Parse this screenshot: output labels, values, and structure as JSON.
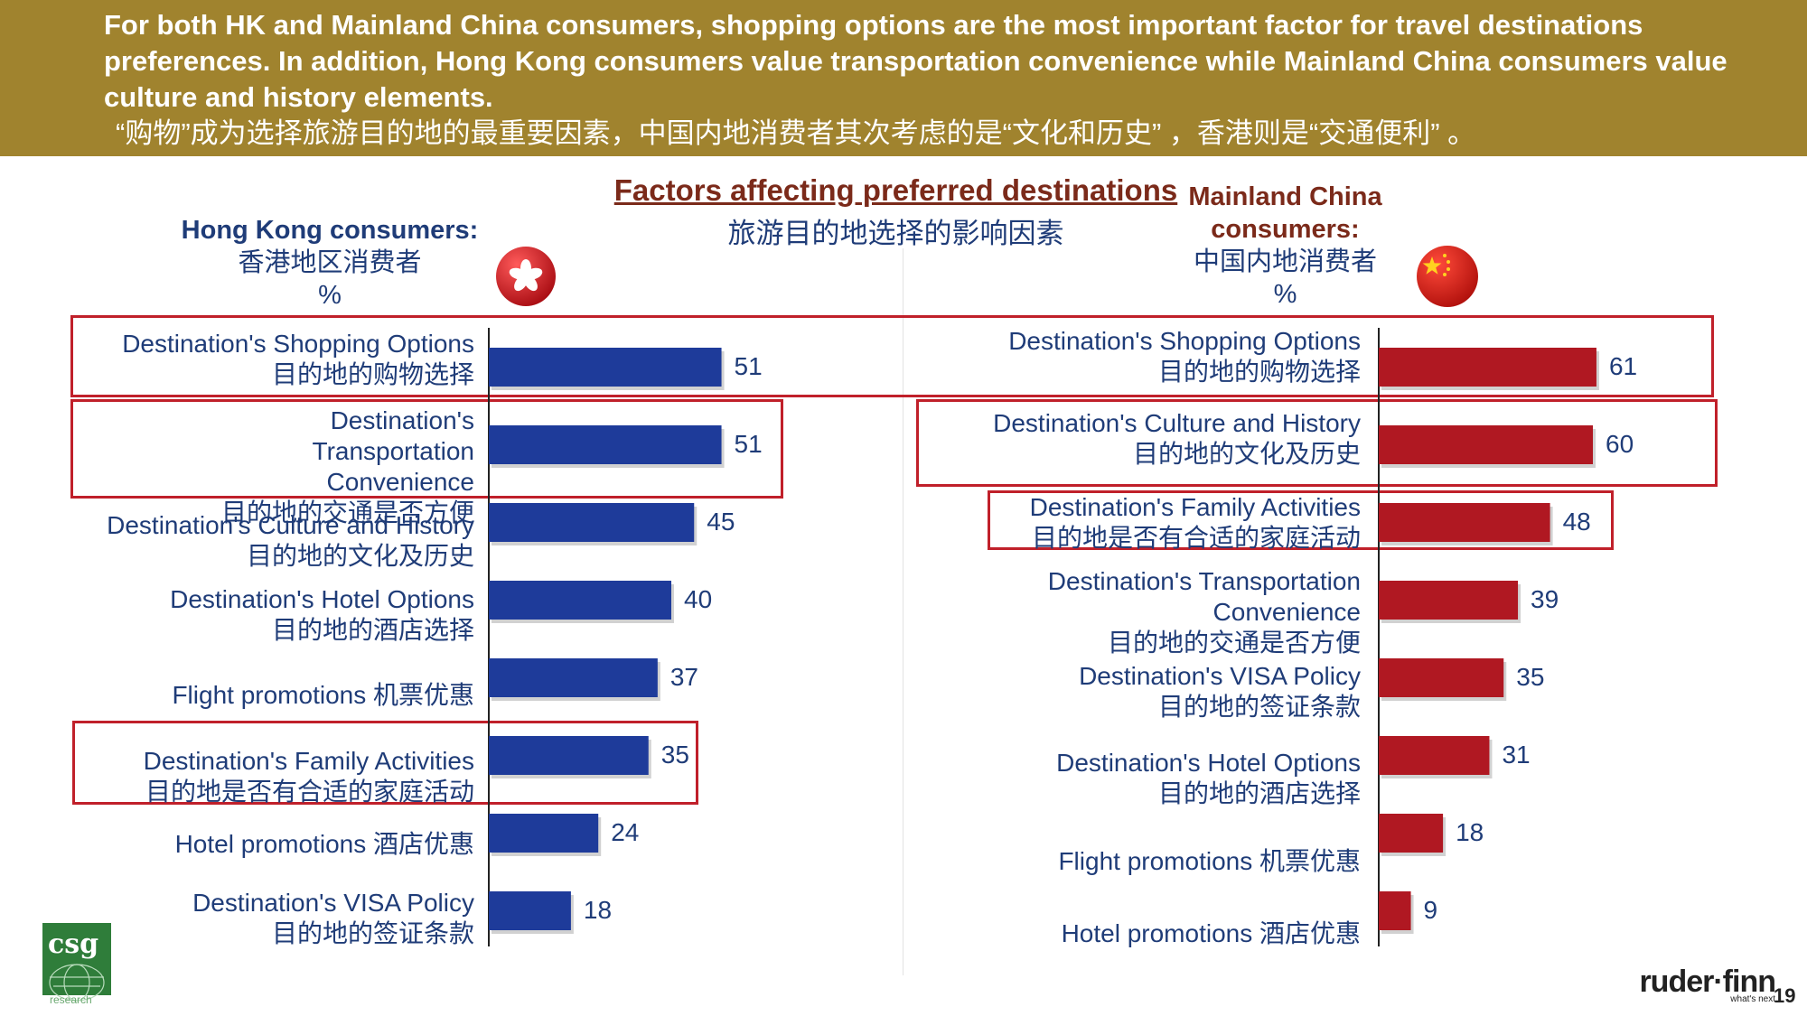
{
  "header": {
    "english": "For both HK and Mainland China consumers, shopping options are the most important factor for travel destinations preferences. In addition, Hong Kong consumers value transportation convenience while Mainland China consumers value culture and history elements.",
    "chinese": "“购物”成为选择旅游目的地的最重要因素，中国内地消费者其次考虑的是“文化和历史” ，香港则是“交通便利” 。"
  },
  "colors": {
    "header_bg": "#a0832e",
    "hk_bar": "#1e3b9a",
    "cn_bar": "#b01822",
    "highlight": "#c0202a",
    "text": "#1f3c78"
  },
  "chart_data": [
    {
      "type": "bar",
      "orientation": "horizontal",
      "title": "Factors affecting preferred destinations",
      "subtitle": "旅游目的地选择的影响因素",
      "series_label": "Hong Kong consumers:",
      "series_label_cn": "香港地区消费者",
      "unit": "%",
      "xlim": [
        0,
        100
      ],
      "categories": [
        {
          "en": "Destination's Shopping Options",
          "cn": "目的地的购物选择"
        },
        {
          "en": "Destination's Transportation Convenience",
          "cn": "目的地的交通是否方便"
        },
        {
          "en": "Destination's Culture and History",
          "cn": "目的地的文化及历史"
        },
        {
          "en": "Destination's Hotel Options",
          "cn": "目的地的酒店选择"
        },
        {
          "en": "Flight promotions 机票优惠",
          "cn": ""
        },
        {
          "en": "Destination's Family Activities",
          "cn": "目的地是否有合适的家庭活动"
        },
        {
          "en": "Hotel promotions 酒店优惠",
          "cn": ""
        },
        {
          "en": "Destination's VISA Policy",
          "cn": "目的地的签证条款"
        }
      ],
      "values": [
        51,
        51,
        45,
        40,
        37,
        35,
        24,
        18
      ],
      "highlighted": [
        0,
        1,
        5
      ]
    },
    {
      "type": "bar",
      "orientation": "horizontal",
      "series_label": "Mainland China consumers:",
      "series_label_cn": "中国内地消费者",
      "unit": "%",
      "xlim": [
        0,
        100
      ],
      "categories": [
        {
          "en": "Destination's Shopping Options",
          "cn": "目的地的购物选择"
        },
        {
          "en": "Destination's Culture and History",
          "cn": "目的地的文化及历史"
        },
        {
          "en": "Destination's Family Activities",
          "cn": "目的地是否有合适的家庭活动"
        },
        {
          "en": "Destination's Transportation Convenience",
          "cn": "目的地的交通是否方便"
        },
        {
          "en": "Destination's VISA Policy",
          "cn": "目的地的签证条款"
        },
        {
          "en": "Destination's Hotel Options",
          "cn": "目的地的酒店选择"
        },
        {
          "en": "Flight promotions 机票优惠",
          "cn": ""
        },
        {
          "en": "Hotel promotions 酒店优惠",
          "cn": ""
        }
      ],
      "values": [
        61,
        60,
        48,
        39,
        35,
        31,
        18,
        9
      ],
      "highlighted": [
        0,
        1,
        2
      ]
    }
  ],
  "logos": {
    "left": "csg",
    "left_sub": "research",
    "right": "ruder·finn",
    "right_tag": "what's next"
  },
  "page_number": "19"
}
